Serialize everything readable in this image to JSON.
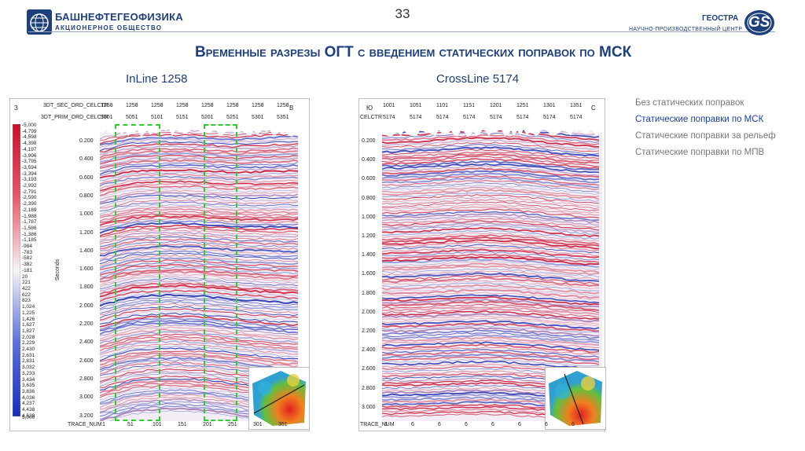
{
  "header": {
    "company_name": "БАШНЕФТЕГЕОФИЗИКА",
    "company_sub": "АКЦИОНЕРНОЕ ОБЩЕСТВО",
    "page_number": "33",
    "partner_name": "ГЕОСТРА",
    "partner_logo": "GS",
    "partner_sub": "НАУЧНО-ПРОИЗВОДСТВЕННЫЙ ЦЕНТР",
    "title": "Временные разрезы ОГТ с введением статических поправок по МСК"
  },
  "colors": {
    "brand": "#1d3f7a",
    "accent_green": "#2ecc2e",
    "link": "#1d3f9a",
    "muted": "#777777"
  },
  "inline": {
    "label": "InLine 1258",
    "compass_left": "З",
    "compass_right": "В",
    "hdr1_label": "3DT_SEC_ORD_CELCTR",
    "hdr1_values": [
      "1258",
      "1258",
      "1258",
      "1258",
      "1258",
      "1258",
      "1258",
      "1258"
    ],
    "hdr2_label": "3DT_PRIM_ORD_CELCTR",
    "hdr2_values": [
      "5001",
      "5051",
      "5101",
      "5151",
      "5201",
      "5251",
      "5301",
      "5351"
    ],
    "trace_label": "TRACE_NUM",
    "trace_values": [
      "1",
      "51",
      "101",
      "151",
      "201",
      "251",
      "301",
      "351"
    ],
    "yaxis_label": "Seconds",
    "time_ticks": [
      "0.200",
      "0.400",
      "0.600",
      "0.800",
      "1.000",
      "1.200",
      "1.400",
      "1.600",
      "1.800",
      "2.000",
      "2.200",
      "2.400",
      "2.600",
      "2.800",
      "3.000",
      "3.200"
    ]
  },
  "crossline": {
    "label": "CrossLine 5174",
    "compass_left": "Ю",
    "compass_right": "С",
    "hdr1_values": [
      "1001",
      "1051",
      "1101",
      "1151",
      "1201",
      "1251",
      "1301",
      "1351"
    ],
    "hdr2_label": "CELCTR",
    "hdr2_values": [
      "5174",
      "5174",
      "5174",
      "5174",
      "5174",
      "5174",
      "5174",
      "5174"
    ],
    "trace_label": "TRACE_NUM",
    "trace_values": [
      "6",
      "6",
      "6",
      "6",
      "6",
      "6",
      "6",
      "6"
    ],
    "time_ticks": [
      "0.200",
      "0.400",
      "0.600",
      "0.800",
      "1.000",
      "1.200",
      "1.400",
      "1.600",
      "1.800",
      "2.000",
      "2.200",
      "2.400",
      "2.600",
      "2.800",
      "3.000"
    ]
  },
  "legend": {
    "values": [
      "-5,000",
      "-4,799",
      "-4,598",
      "-4,398",
      "-4,197",
      "-3,996",
      "-3,795",
      "-3,594",
      "-3,394",
      "-3,193",
      "-2,992",
      "-2,791",
      "-2,590",
      "-2,390",
      "-2,189",
      "-1,988",
      "-1,787",
      "-1,586",
      "-1,386",
      "-1,185",
      "-984",
      "-783",
      "-582",
      "-382",
      "-181",
      "20",
      "221",
      "422",
      "622",
      "823",
      "1,024",
      "1,225",
      "1,426",
      "1,627",
      "1,827",
      "2,028",
      "2,229",
      "2,430",
      "2,631",
      "2,831",
      "3,032",
      "3,233",
      "3,434",
      "3,635",
      "3,836",
      "4,036",
      "4,237",
      "4,438",
      "4,639"
    ],
    "bottom_value": "5,000"
  },
  "options": [
    {
      "label": "Без статических поправок",
      "active": false
    },
    {
      "label": "Статические поправки по МСК",
      "active": true
    },
    {
      "label": "Статические поправки за рельеф",
      "active": false
    },
    {
      "label": "Статические поправки по МПВ",
      "active": false
    }
  ]
}
